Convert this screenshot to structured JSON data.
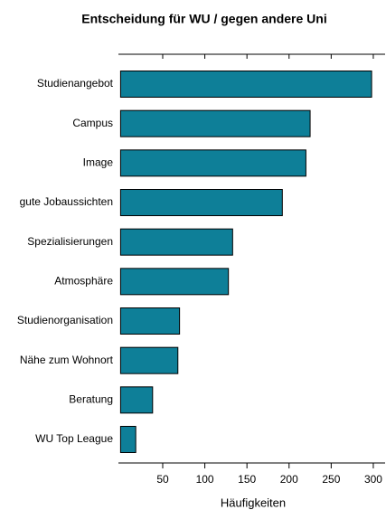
{
  "chart_data": {
    "type": "barh",
    "title": "Entscheidung für WU / gegen andere Uni",
    "categories": [
      "Studienangebot",
      "Campus",
      "Image",
      "gute Jobaussichten",
      "Spezialisierungen",
      "Atmosphäre",
      "Studienorganisation",
      "Nähe zum Wohnort",
      "Beratung",
      "WU Top League"
    ],
    "values": [
      298,
      225,
      220,
      192,
      133,
      128,
      70,
      68,
      38,
      18
    ],
    "color": "#0e7f98",
    "xlabel": "Häufigkeiten",
    "xlim": [
      0,
      314
    ],
    "xticks": [
      50,
      100,
      150,
      200,
      250,
      300
    ],
    "grid": false
  }
}
